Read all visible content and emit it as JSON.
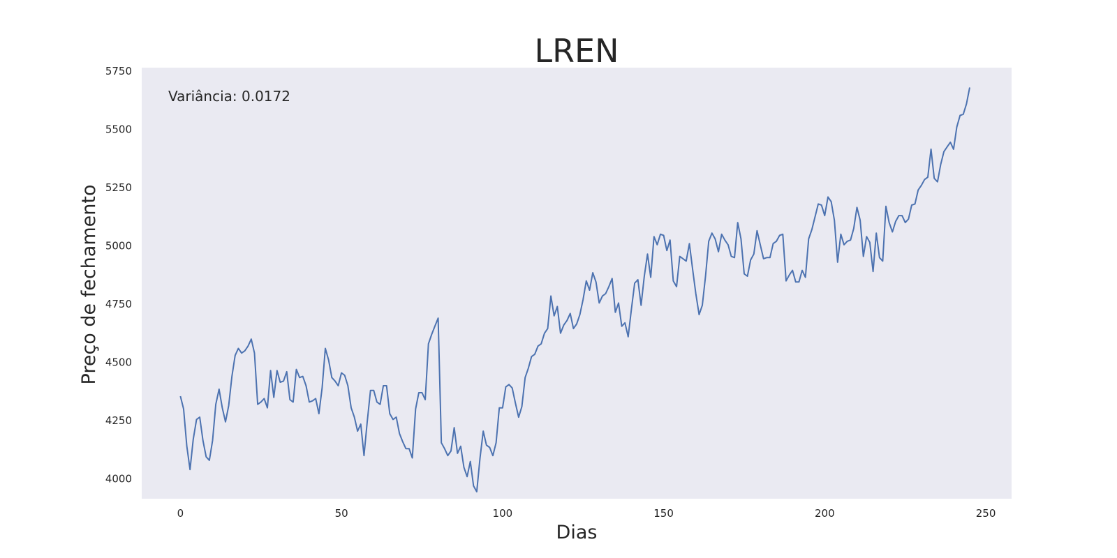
{
  "chart_data": {
    "type": "line",
    "title": "LREN",
    "xlabel": "Dias",
    "ylabel": "Preço de fechamento",
    "annotation": "Variância: 0.0172",
    "xlim": [
      -12,
      258
    ],
    "ylim": [
      3915,
      5765
    ],
    "x_ticks": [
      0,
      50,
      100,
      150,
      200,
      250
    ],
    "y_ticks": [
      4000,
      4250,
      4500,
      4750,
      5000,
      5250,
      5500,
      5750
    ],
    "grid": false,
    "colors": {
      "line": "#4c72b0",
      "plot_bg": "#eaeaf2"
    },
    "series": [
      {
        "x": [
          0,
          1,
          2,
          3,
          4,
          5,
          6,
          7,
          8,
          9,
          10,
          11,
          12,
          13,
          14,
          15,
          16,
          17,
          18,
          19,
          20,
          21,
          22,
          23,
          24,
          25,
          26,
          27,
          28,
          29,
          30,
          31,
          32,
          33,
          34,
          35,
          36,
          37,
          38,
          39,
          40,
          41,
          42,
          43,
          44,
          45,
          46,
          47,
          48,
          49,
          50,
          51,
          52,
          53,
          54,
          55,
          56,
          57,
          58,
          59,
          60,
          61,
          62,
          63,
          64,
          65,
          66,
          67,
          68,
          69,
          70,
          71,
          72,
          73,
          74,
          75,
          76,
          77,
          78,
          79,
          80,
          81,
          82,
          83,
          84,
          85,
          86,
          87,
          88,
          89,
          90,
          91,
          92,
          93,
          94,
          95,
          96,
          97,
          98,
          99,
          100,
          101,
          102,
          103,
          104,
          105,
          106,
          107,
          108,
          109,
          110,
          111,
          112,
          113,
          114,
          115,
          116,
          117,
          118,
          119,
          120,
          121,
          122,
          123,
          124,
          125,
          126,
          127,
          128,
          129,
          130,
          131,
          132,
          133,
          134,
          135,
          136,
          137,
          138,
          139,
          140,
          141,
          142,
          143,
          144,
          145,
          146,
          147,
          148,
          149,
          150,
          151,
          152,
          153,
          154,
          155,
          156,
          157,
          158,
          159,
          160,
          161,
          162,
          163,
          164,
          165,
          166,
          167,
          168,
          169,
          170,
          171,
          172,
          173,
          174,
          175,
          176,
          177,
          178,
          179,
          180,
          181,
          182,
          183,
          184,
          185,
          186,
          187,
          188,
          189,
          190,
          191,
          192,
          193,
          194,
          195,
          196,
          197,
          198,
          199,
          200,
          201,
          202,
          203,
          204,
          205,
          206,
          207,
          208,
          209,
          210,
          211,
          212,
          213,
          214,
          215,
          216,
          217,
          218,
          219,
          220,
          221,
          222,
          223,
          224,
          225,
          226,
          227,
          228,
          229,
          230,
          231,
          232,
          233,
          234,
          235,
          236,
          237,
          238,
          239,
          240,
          241,
          242,
          243,
          244,
          245
        ],
        "y": [
          4355,
          4300,
          4140,
          4040,
          4170,
          4255,
          4265,
          4165,
          4095,
          4080,
          4165,
          4320,
          4385,
          4305,
          4245,
          4315,
          4440,
          4530,
          4560,
          4540,
          4550,
          4570,
          4600,
          4540,
          4320,
          4330,
          4345,
          4305,
          4465,
          4350,
          4465,
          4415,
          4420,
          4460,
          4340,
          4330,
          4470,
          4435,
          4440,
          4400,
          4330,
          4335,
          4345,
          4280,
          4390,
          4560,
          4510,
          4435,
          4420,
          4400,
          4455,
          4445,
          4400,
          4305,
          4265,
          4205,
          4235,
          4100,
          4245,
          4380,
          4380,
          4330,
          4320,
          4400,
          4400,
          4280,
          4255,
          4265,
          4195,
          4160,
          4130,
          4130,
          4090,
          4300,
          4370,
          4370,
          4340,
          4580,
          4620,
          4655,
          4690,
          4155,
          4130,
          4100,
          4120,
          4220,
          4110,
          4140,
          4050,
          4010,
          4075,
          3970,
          3945,
          4090,
          4205,
          4145,
          4135,
          4100,
          4155,
          4305,
          4305,
          4395,
          4405,
          4390,
          4325,
          4265,
          4310,
          4435,
          4475,
          4525,
          4535,
          4570,
          4580,
          4625,
          4645,
          4785,
          4700,
          4740,
          4625,
          4660,
          4680,
          4710,
          4645,
          4665,
          4705,
          4770,
          4850,
          4810,
          4885,
          4845,
          4755,
          4785,
          4795,
          4825,
          4860,
          4715,
          4755,
          4655,
          4670,
          4610,
          4730,
          4840,
          4855,
          4745,
          4870,
          4965,
          4865,
          5040,
          5005,
          5050,
          5045,
          4980,
          5025,
          4850,
          4825,
          4955,
          4945,
          4935,
          5010,
          4900,
          4795,
          4705,
          4745,
          4870,
          5020,
          5055,
          5030,
          4975,
          5050,
          5025,
          5005,
          4955,
          4950,
          5100,
          5030,
          4880,
          4870,
          4940,
          4965,
          5065,
          5005,
          4945,
          4950,
          4950,
          5010,
          5020,
          5045,
          5050,
          4850,
          4875,
          4895,
          4845,
          4845,
          4895,
          4865,
          5030,
          5070,
          5125,
          5180,
          5175,
          5130,
          5210,
          5190,
          5110,
          4930,
          5050,
          5005,
          5020,
          5025,
          5075,
          5165,
          5110,
          4955,
          5040,
          5015,
          4890,
          5055,
          4950,
          4935,
          5170,
          5100,
          5060,
          5105,
          5130,
          5130,
          5100,
          5115,
          5175,
          5180,
          5240,
          5260,
          5285,
          5295,
          5415,
          5290,
          5275,
          5350,
          5405,
          5425,
          5445,
          5415,
          5510,
          5560,
          5565,
          5610,
          5680
        ]
      }
    ]
  }
}
